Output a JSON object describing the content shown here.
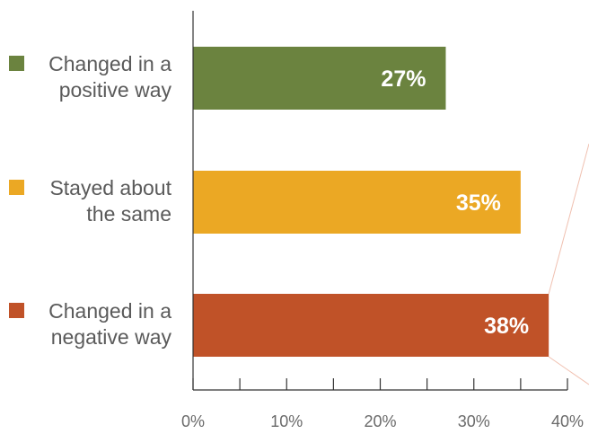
{
  "chart_data": {
    "type": "bar",
    "orientation": "horizontal",
    "categories": [
      [
        "Changed in a",
        "positive way"
      ],
      [
        "Stayed about",
        "the same"
      ],
      [
        "Changed in a",
        "negative way"
      ]
    ],
    "values": [
      27,
      35,
      38
    ],
    "value_labels": [
      "27%",
      "35%",
      "38%"
    ],
    "colors": [
      "#6b833f",
      "#eba824",
      "#c05228"
    ],
    "xlim": [
      0,
      40
    ],
    "major_ticks": [
      0,
      10,
      20,
      30,
      40
    ],
    "tick_labels": [
      "0%",
      "10%",
      "20%",
      "30%",
      "40%"
    ],
    "minor_ticks": [
      5,
      15,
      25,
      35
    ],
    "legend_position": "left",
    "callout_line_color": "#f0c0b0"
  }
}
